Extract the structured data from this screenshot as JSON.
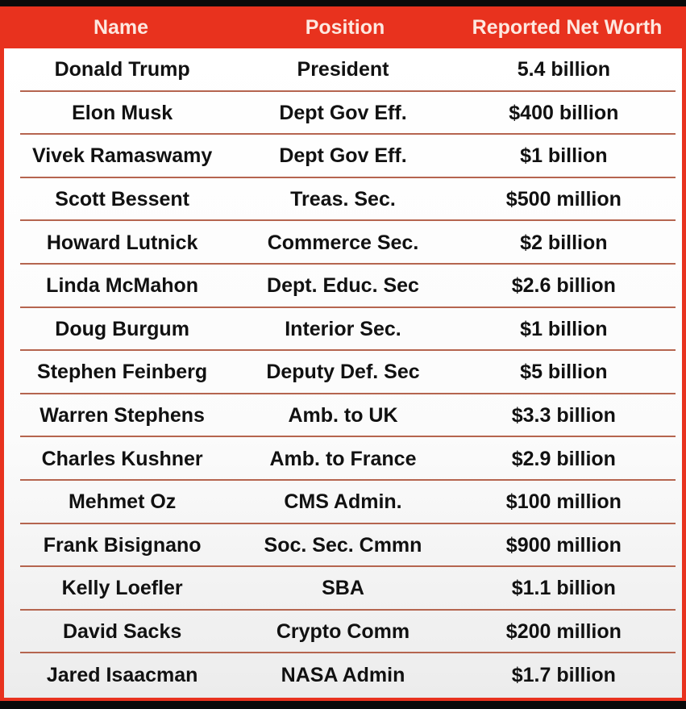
{
  "headers": [
    "Name",
    "Position",
    "Reported Net Worth"
  ],
  "colors": {
    "header_bg": "#e8321e",
    "header_text": "#fde8e0",
    "divider": "#b5654f"
  },
  "rows": [
    [
      "Donald Trump",
      "President",
      "5.4 billion"
    ],
    [
      "Elon Musk",
      "Dept Gov Eff.",
      "$400 billion"
    ],
    [
      "Vivek Ramaswamy",
      "Dept Gov Eff.",
      "$1 billion"
    ],
    [
      "Scott Bessent",
      "Treas. Sec.",
      "$500 million"
    ],
    [
      "Howard Lutnick",
      "Commerce Sec.",
      "$2 billion"
    ],
    [
      "Linda McMahon",
      "Dept. Educ. Sec",
      "$2.6 billion"
    ],
    [
      "Doug Burgum",
      "Interior Sec.",
      "$1 billion"
    ],
    [
      "Stephen Feinberg",
      "Deputy Def. Sec",
      "$5 billion"
    ],
    [
      "Warren Stephens",
      "Amb. to UK",
      "$3.3 billion"
    ],
    [
      "Charles Kushner",
      "Amb. to France",
      "$2.9 billion"
    ],
    [
      "Mehmet Oz",
      "CMS Admin.",
      "$100 million"
    ],
    [
      "Frank Bisignano",
      "Soc. Sec. Cmmn",
      "$900 million"
    ],
    [
      "Kelly Loefler",
      "SBA",
      "$1.1 billion"
    ],
    [
      "David Sacks",
      "Crypto Comm",
      "$200 million"
    ],
    [
      "Jared Isaacman",
      "NASA Admin",
      "$1.7 billion"
    ]
  ]
}
